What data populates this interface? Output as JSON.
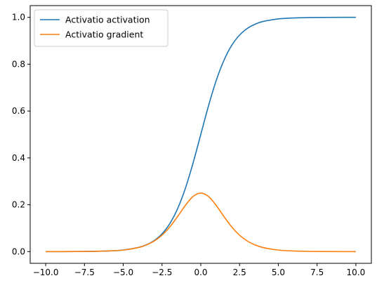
{
  "chart_data": {
    "type": "line",
    "title": "",
    "xlabel": "",
    "ylabel": "",
    "xlim": [
      -11.0,
      11.0
    ],
    "ylim": [
      -0.05,
      1.05
    ],
    "grid": false,
    "legend_position": "top-left",
    "x_ticks": [
      -10.0,
      -7.5,
      -5.0,
      -2.5,
      0.0,
      2.5,
      5.0,
      7.5,
      10.0
    ],
    "x_tick_labels": [
      "−10.0",
      "−7.5",
      "−5.0",
      "−2.5",
      "0.0",
      "2.5",
      "5.0",
      "7.5",
      "10.0"
    ],
    "y_ticks": [
      0.0,
      0.2,
      0.4,
      0.6,
      0.8,
      1.0
    ],
    "y_tick_labels": [
      "0.0",
      "0.2",
      "0.4",
      "0.6",
      "0.8",
      "1.0"
    ],
    "x": [
      -10,
      -9,
      -8,
      -7,
      -6,
      -5,
      -4,
      -3.5,
      -3,
      -2.5,
      -2,
      -1.5,
      -1,
      -0.5,
      0,
      0.5,
      1,
      1.5,
      2,
      2.5,
      3,
      3.5,
      4,
      5,
      6,
      7,
      8,
      9,
      10
    ],
    "series": [
      {
        "name": "Activatio activation",
        "color": "#1f77b4",
        "values": [
          0.0,
          0.0001,
          0.0003,
          0.0009,
          0.0025,
          0.0067,
          0.018,
          0.0293,
          0.0474,
          0.0759,
          0.1192,
          0.1824,
          0.2689,
          0.3775,
          0.5,
          0.6225,
          0.7311,
          0.8176,
          0.8808,
          0.9241,
          0.9526,
          0.9707,
          0.982,
          0.9933,
          0.9975,
          0.9991,
          0.9997,
          0.9999,
          1.0
        ]
      },
      {
        "name": "Activatio gradient",
        "color": "#ff7f0e",
        "values": [
          0.0,
          0.0001,
          0.0003,
          0.0009,
          0.0025,
          0.0066,
          0.0177,
          0.0285,
          0.0452,
          0.0701,
          0.105,
          0.1491,
          0.1966,
          0.235,
          0.25,
          0.235,
          0.1966,
          0.1491,
          0.105,
          0.0701,
          0.0452,
          0.0285,
          0.0177,
          0.0066,
          0.0025,
          0.0009,
          0.0003,
          0.0001,
          0.0
        ]
      }
    ]
  }
}
